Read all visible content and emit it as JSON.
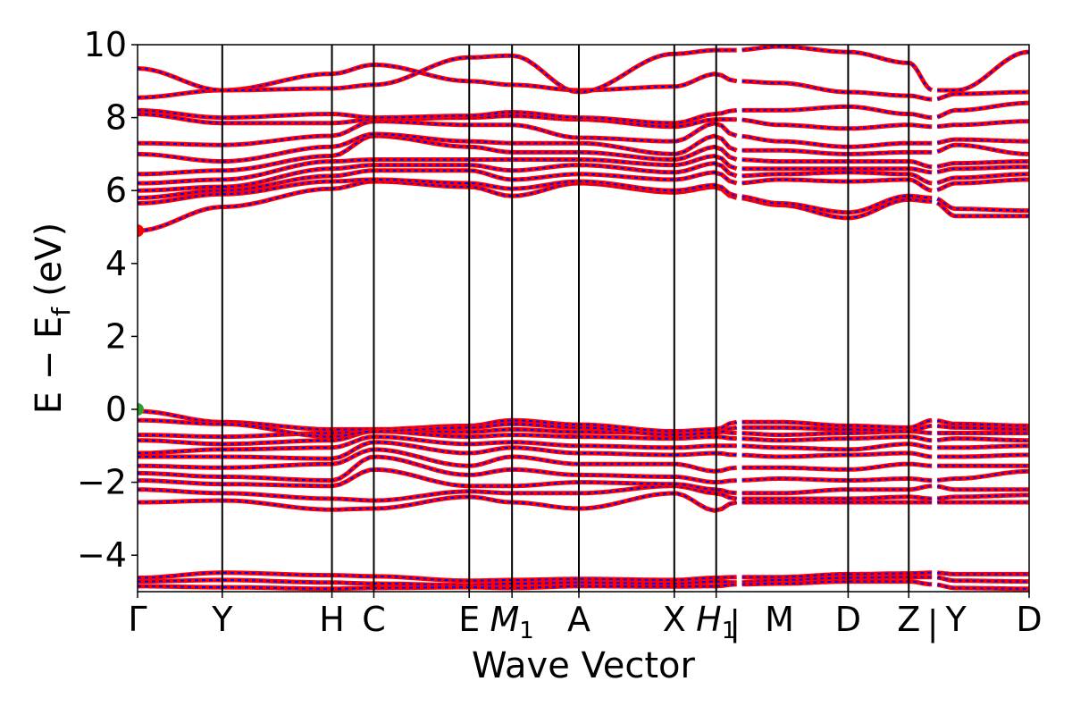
{
  "chart_data": {
    "type": "line",
    "xlabel": "Wave Vector",
    "ylabel": "E − E",
    "ylabel_sub": "f",
    "ylabel_unit": "(eV)",
    "ylim": [
      -5,
      10
    ],
    "y_ticks": [
      -4,
      -2,
      0,
      2,
      4,
      6,
      8,
      10
    ],
    "y_tick_labels": [
      "−4",
      "−2",
      "0",
      "2",
      "4",
      "6",
      "8",
      "10"
    ],
    "x_range": [
      0,
      1
    ],
    "kpoints": [
      {
        "pos": 0.0,
        "label": "Γ"
      },
      {
        "pos": 0.095,
        "label": "Y"
      },
      {
        "pos": 0.218,
        "label": "H"
      },
      {
        "pos": 0.265,
        "label": "C"
      },
      {
        "pos": 0.372,
        "label": "E"
      },
      {
        "pos": 0.42,
        "label": "M",
        "sub": "1",
        "italic": true
      },
      {
        "pos": 0.495,
        "label": "A"
      },
      {
        "pos": 0.602,
        "label": "X"
      },
      {
        "pos": 0.649,
        "label": "H",
        "sub": "1",
        "italic": true
      },
      {
        "pos": 0.67,
        "label": "|",
        "no_line": true
      },
      {
        "pos": 0.72,
        "label": "M",
        "no_line": true
      },
      {
        "pos": 0.797,
        "label": "D"
      },
      {
        "pos": 0.865,
        "label": "Z"
      },
      {
        "pos": 0.892,
        "label": "|",
        "no_line": true
      },
      {
        "pos": 0.918,
        "label": "Y",
        "no_line": true
      },
      {
        "pos": 1.0,
        "label": "D"
      }
    ],
    "segment_breaks": [
      0.675,
      0.894
    ],
    "series_colors": {
      "spin_up": "#ff0000",
      "spin_down": "#0000ff"
    },
    "markers": [
      {
        "x": 0.0,
        "y": 4.9,
        "color": "#ff0000"
      },
      {
        "x": 0.0,
        "y": 0.0,
        "color": "#2ca02c"
      }
    ],
    "bands": [
      {
        "nodes": [
          -4.62,
          -4.48,
          -4.55,
          -4.58,
          -4.7,
          -4.68,
          -4.65,
          -4.68,
          -4.62,
          -4.6,
          -4.6,
          -4.52,
          -4.5,
          -4.48,
          -4.52,
          -4.52
        ]
      },
      {
        "nodes": [
          -4.72,
          -4.68,
          -4.75,
          -4.78,
          -4.82,
          -4.78,
          -4.75,
          -4.78,
          -4.72,
          -4.75,
          -4.68,
          -4.62,
          -4.6,
          -4.6,
          -4.7,
          -4.72
        ]
      },
      {
        "nodes": [
          -4.85,
          -4.88,
          -4.92,
          -4.9,
          -4.88,
          -4.9,
          -4.85,
          -4.86,
          -4.85,
          -4.8,
          -4.78,
          -4.72,
          -4.72,
          -4.8,
          -4.9,
          -4.92
        ]
      },
      {
        "nodes": [
          -2.55,
          -2.5,
          -2.75,
          -2.72,
          -2.4,
          -2.55,
          -2.72,
          -2.3,
          -2.78,
          -2.55,
          -2.55,
          -2.55,
          -2.55,
          -2.55,
          -2.55,
          -2.55
        ]
      },
      {
        "nodes": [
          -2.2,
          -2.3,
          -2.45,
          -2.5,
          -2.25,
          -2.3,
          -2.3,
          -2.1,
          -2.3,
          -2.45,
          -2.45,
          -2.45,
          -2.4,
          -2.45,
          -2.4,
          -2.35
        ]
      },
      {
        "nodes": [
          -1.95,
          -2.05,
          -2.1,
          -1.65,
          -2.1,
          -2.1,
          -2.0,
          -2.05,
          -2.2,
          -2.3,
          -2.3,
          -2.2,
          -2.2,
          -2.1,
          -2.2,
          -2.2
        ]
      },
      {
        "nodes": [
          -1.75,
          -1.85,
          -1.95,
          -1.3,
          -1.8,
          -1.65,
          -1.8,
          -1.85,
          -2.0,
          -1.95,
          -1.9,
          -1.95,
          -1.9,
          -1.95,
          -1.9,
          -1.7
        ]
      },
      {
        "nodes": [
          -1.55,
          -1.6,
          -1.5,
          -1.1,
          -1.55,
          -1.3,
          -1.5,
          -1.5,
          -1.7,
          -1.6,
          -1.6,
          -1.65,
          -1.5,
          -1.55,
          -1.55,
          -1.55
        ]
      },
      {
        "nodes": [
          -1.3,
          -1.3,
          -1.35,
          -0.9,
          -1.2,
          -1.05,
          -1.2,
          -1.25,
          -1.2,
          -1.25,
          -1.3,
          -1.25,
          -1.2,
          -1.3,
          -1.3,
          -1.25
        ]
      },
      {
        "nodes": [
          -1.2,
          -1.1,
          -1.05,
          -0.75,
          -0.95,
          -0.9,
          -1.0,
          -1.05,
          -1.0,
          -1.0,
          -1.05,
          -1.1,
          -0.95,
          -1.05,
          -1.05,
          -1.0
        ]
      },
      {
        "nodes": [
          -0.85,
          -0.95,
          -0.85,
          -0.6,
          -0.75,
          -0.7,
          -0.75,
          -0.8,
          -0.75,
          -0.8,
          -0.85,
          -0.8,
          -0.75,
          -0.85,
          -0.8,
          -0.85
        ]
      },
      {
        "nodes": [
          -0.7,
          -0.75,
          -0.65,
          -0.55,
          -0.62,
          -0.55,
          -0.62,
          -0.65,
          -0.6,
          -0.65,
          -0.7,
          -0.65,
          -0.6,
          -0.65,
          -0.65,
          -0.65
        ]
      },
      {
        "nodes": [
          -0.05,
          -0.35,
          -0.55,
          -0.55,
          -0.45,
          -0.3,
          -0.42,
          -0.6,
          -0.55,
          -0.35,
          -0.35,
          -0.45,
          -0.5,
          -0.3,
          -0.4,
          -0.45
        ]
      },
      {
        "nodes": [
          -0.3,
          -0.4,
          -0.75,
          -0.6,
          -0.5,
          -0.4,
          -0.5,
          -0.7,
          -0.65,
          -0.5,
          -0.5,
          -0.55,
          -0.6,
          -0.45,
          -0.5,
          -0.55
        ]
      },
      {
        "nodes": [
          4.9,
          5.55,
          6.05,
          6.25,
          6.1,
          5.85,
          6.2,
          5.95,
          6.1,
          5.8,
          5.6,
          5.25,
          5.75,
          5.7,
          5.3,
          5.3
        ]
      },
      {
        "nodes": [
          5.65,
          5.9,
          6.25,
          6.3,
          6.2,
          6.05,
          6.25,
          6.0,
          6.15,
          5.85,
          5.65,
          5.4,
          5.85,
          5.8,
          5.5,
          5.45
        ]
      },
      {
        "nodes": [
          5.8,
          6.0,
          6.4,
          6.55,
          6.55,
          6.3,
          6.45,
          6.3,
          6.5,
          6.2,
          6.3,
          6.25,
          6.3,
          6.0,
          6.2,
          6.3
        ]
      },
      {
        "nodes": [
          6.0,
          6.1,
          6.6,
          6.7,
          6.7,
          6.55,
          6.7,
          6.5,
          6.75,
          6.4,
          6.45,
          6.5,
          6.45,
          6.2,
          6.35,
          6.45
        ]
      },
      {
        "nodes": [
          6.2,
          6.3,
          6.8,
          6.85,
          6.85,
          6.85,
          6.85,
          6.7,
          6.95,
          6.6,
          6.6,
          6.6,
          6.6,
          6.5,
          6.6,
          6.65
        ]
      },
      {
        "nodes": [
          6.45,
          6.55,
          6.95,
          7.5,
          7.2,
          7.05,
          7.05,
          6.85,
          7.2,
          6.85,
          6.8,
          6.8,
          6.8,
          6.65,
          6.75,
          6.8
        ]
      },
      {
        "nodes": [
          7.0,
          6.8,
          7.2,
          7.55,
          7.35,
          7.3,
          7.3,
          7.0,
          7.5,
          7.1,
          7.1,
          7.0,
          7.05,
          7.05,
          7.25,
          7.0
        ]
      },
      {
        "nodes": [
          7.3,
          7.25,
          7.5,
          7.9,
          7.8,
          7.8,
          7.45,
          7.35,
          7.85,
          7.5,
          7.35,
          7.2,
          7.3,
          7.3,
          7.4,
          7.35
        ]
      },
      {
        "nodes": [
          8.1,
          7.85,
          7.85,
          7.95,
          8.0,
          8.05,
          7.95,
          7.75,
          7.95,
          7.95,
          7.8,
          7.7,
          7.8,
          7.75,
          7.8,
          7.9
        ]
      },
      {
        "nodes": [
          8.2,
          8.0,
          8.1,
          8.0,
          8.05,
          8.15,
          8.0,
          7.85,
          8.1,
          8.2,
          8.2,
          8.3,
          8.1,
          8.0,
          8.2,
          8.4
        ]
      },
      {
        "nodes": [
          8.55,
          8.75,
          9.2,
          9.45,
          9.0,
          8.9,
          8.75,
          8.85,
          9.2,
          9.0,
          8.95,
          8.7,
          8.6,
          8.5,
          8.65,
          8.7
        ]
      },
      {
        "nodes": [
          9.35,
          8.75,
          8.8,
          8.9,
          9.65,
          9.7,
          8.7,
          9.75,
          9.85,
          9.85,
          9.95,
          9.8,
          9.5,
          8.75,
          8.75,
          9.8
        ]
      }
    ]
  }
}
